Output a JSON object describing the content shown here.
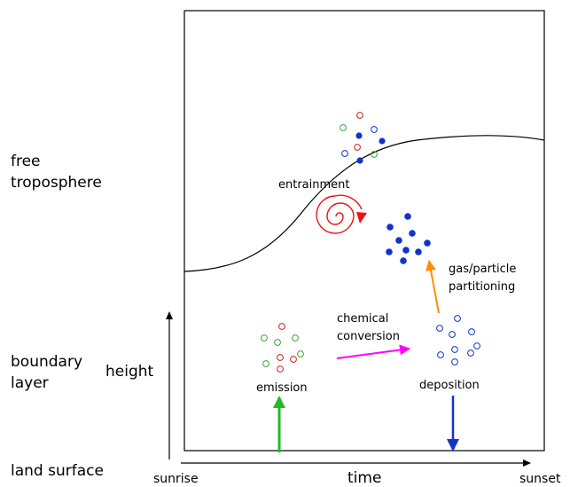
{
  "layer_labels": {
    "free_troposphere": [
      "free",
      "troposphere"
    ],
    "boundary_layer": [
      "boundary",
      "layer"
    ],
    "land_surface": "land surface"
  },
  "axes": {
    "y_label": "height",
    "x_label": "time",
    "x_start": "sunrise",
    "x_end": "sunset"
  },
  "processes": {
    "entrainment": "entrainment",
    "chemical_conversion": [
      "chemical",
      "conversion"
    ],
    "gas_particle_partitioning": [
      "gas/particle",
      "partitioning"
    ],
    "emission": "emission",
    "deposition": "deposition"
  },
  "colors": {
    "emission_arrow": "#22bb22",
    "deposition_arrow": "#1133cc",
    "chemical_arrow": "#ff00ff",
    "partitioning_arrow": "#ff8c00",
    "entrainment_spiral": "#ee1111",
    "red_particle": "#cc2222",
    "green_particle": "#33aa33",
    "blue_particle": "#1133cc"
  }
}
